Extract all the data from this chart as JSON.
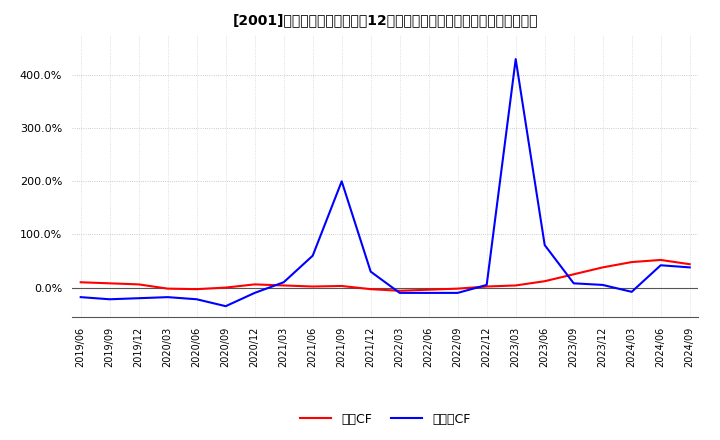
{
  "title": "[2001]　キャッシュフローの12か月移動合計の対前年同期増減率の推移",
  "legend_labels": [
    "営業CF",
    "フリーCF"
  ],
  "line_colors": [
    "#ff0000",
    "#0000ff"
  ],
  "background_color": "#ffffff",
  "dates": [
    "2019/06",
    "2019/09",
    "2019/12",
    "2020/03",
    "2020/06",
    "2020/09",
    "2020/12",
    "2021/03",
    "2021/06",
    "2021/09",
    "2021/12",
    "2022/03",
    "2022/06",
    "2022/09",
    "2022/12",
    "2023/03",
    "2023/06",
    "2023/09",
    "2023/12",
    "2024/03",
    "2024/06",
    "2024/09"
  ],
  "eigyo_cf": [
    0.1,
    0.08,
    0.06,
    -0.02,
    -0.03,
    0.0,
    0.06,
    0.04,
    0.02,
    0.03,
    -0.03,
    -0.06,
    -0.04,
    -0.02,
    0.02,
    0.04,
    0.12,
    0.25,
    0.38,
    0.48,
    0.52,
    0.44
  ],
  "free_cf": [
    -0.18,
    -0.22,
    -0.2,
    -0.18,
    -0.22,
    -0.35,
    -0.1,
    0.1,
    0.6,
    2.0,
    0.3,
    -0.1,
    -0.1,
    -0.1,
    0.05,
    4.3,
    0.8,
    0.08,
    0.05,
    -0.08,
    0.42,
    0.38
  ],
  "ylim": [
    -0.55,
    4.75
  ],
  "yticks": [
    0.0,
    1.0,
    2.0,
    3.0,
    4.0
  ],
  "ytick_labels": [
    "0.0%",
    "100.0%",
    "200.0%",
    "300.0%",
    "400.0%"
  ],
  "grid_color": "#aaaaaa",
  "zero_line_color": "#555555"
}
